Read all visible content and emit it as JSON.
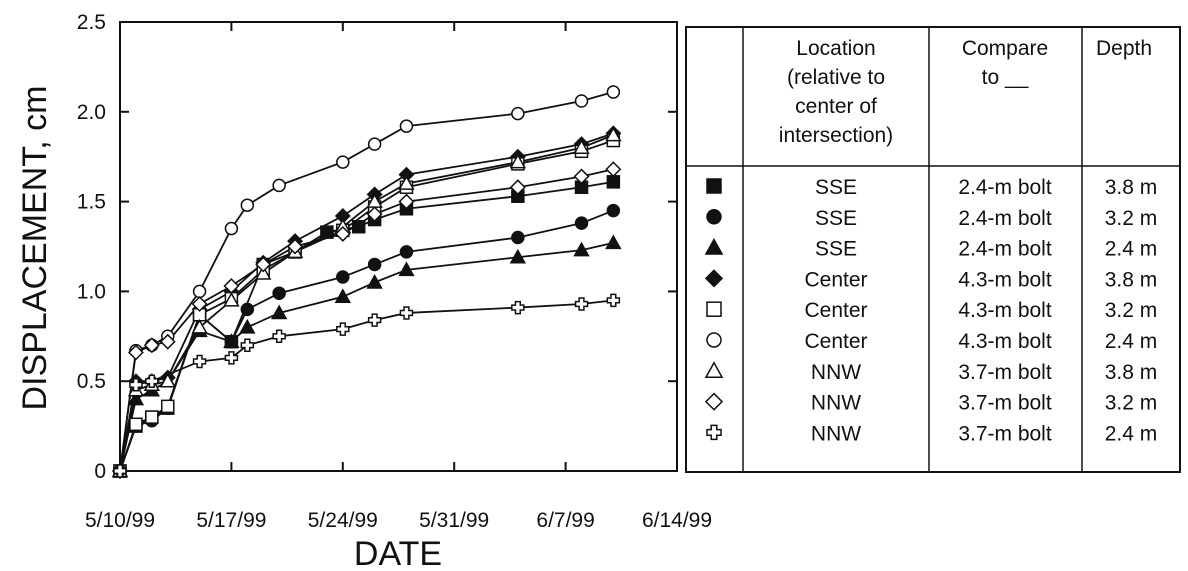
{
  "chart_data": {
    "type": "line",
    "xlabel": "DATE",
    "ylabel": "DISPLACEMENT, cm",
    "xlim": [
      "1999-05-10",
      "1999-06-14"
    ],
    "ylim": [
      0,
      2.5
    ],
    "x_tick_labels": [
      "5/10/99",
      "5/17/99",
      "5/24/99",
      "5/31/99",
      "6/7/99",
      "6/14/99"
    ],
    "y_tick_labels": [
      "0",
      "0.5",
      "1.0",
      "1.5",
      "2.0",
      "2.5"
    ],
    "series": [
      {
        "marker": "filled-square",
        "location": "SSE",
        "compare": "2.4-m bolt",
        "depth": "3.8 m",
        "x": [
          "1999-05-10",
          "1999-05-11",
          "1999-05-12",
          "1999-05-13",
          "1999-05-15",
          "1999-05-17",
          "1999-05-19",
          "1999-05-21",
          "1999-05-23",
          "1999-05-25",
          "1999-05-26",
          "1999-05-28",
          "1999-06-04",
          "1999-06-08",
          "1999-06-10"
        ],
        "values": [
          0.0,
          0.25,
          0.3,
          0.35,
          0.87,
          0.72,
          1.15,
          1.22,
          1.33,
          1.36,
          1.4,
          1.46,
          1.53,
          1.58,
          1.61
        ]
      },
      {
        "marker": "filled-circle",
        "location": "SSE",
        "compare": "2.4-m bolt",
        "depth": "3.2 m",
        "x": [
          "1999-05-10",
          "1999-05-11",
          "1999-05-12",
          "1999-05-13",
          "1999-05-15",
          "1999-05-17",
          "1999-05-18",
          "1999-05-20",
          "1999-05-24",
          "1999-05-26",
          "1999-05-28",
          "1999-06-04",
          "1999-06-08",
          "1999-06-10"
        ],
        "values": [
          0.0,
          0.25,
          0.28,
          0.35,
          0.87,
          0.72,
          0.9,
          0.99,
          1.08,
          1.15,
          1.22,
          1.3,
          1.38,
          1.45
        ]
      },
      {
        "marker": "filled-triangle",
        "location": "SSE",
        "compare": "2.4-m bolt",
        "depth": "2.4 m",
        "x": [
          "1999-05-10",
          "1999-05-11",
          "1999-05-12",
          "1999-05-13",
          "1999-05-15",
          "1999-05-17",
          "1999-05-18",
          "1999-05-20",
          "1999-05-24",
          "1999-05-26",
          "1999-05-28",
          "1999-06-04",
          "1999-06-08",
          "1999-06-10"
        ],
        "values": [
          0.0,
          0.4,
          0.45,
          0.5,
          0.78,
          0.72,
          0.8,
          0.88,
          0.97,
          1.05,
          1.12,
          1.19,
          1.23,
          1.27
        ]
      },
      {
        "marker": "filled-diamond",
        "location": "Center",
        "compare": "4.3-m bolt",
        "depth": "3.8 m",
        "x": [
          "1999-05-10",
          "1999-05-11",
          "1999-05-12",
          "1999-05-13",
          "1999-05-15",
          "1999-05-17",
          "1999-05-19",
          "1999-05-21",
          "1999-05-24",
          "1999-05-26",
          "1999-05-28",
          "1999-06-04",
          "1999-06-08",
          "1999-06-10"
        ],
        "values": [
          0.0,
          0.5,
          0.5,
          0.52,
          0.9,
          1.0,
          1.16,
          1.28,
          1.42,
          1.54,
          1.65,
          1.75,
          1.82,
          1.88
        ]
      },
      {
        "marker": "open-square",
        "location": "Center",
        "compare": "4.3-m bolt",
        "depth": "3.2 m",
        "x": [
          "1999-05-10",
          "1999-05-11",
          "1999-05-12",
          "1999-05-13",
          "1999-05-15",
          "1999-05-17",
          "1999-05-19",
          "1999-05-21",
          "1999-05-24",
          "1999-05-26",
          "1999-05-28",
          "1999-06-04",
          "1999-06-08",
          "1999-06-10"
        ],
        "values": [
          0.0,
          0.26,
          0.3,
          0.36,
          0.87,
          0.96,
          1.12,
          1.22,
          1.34,
          1.47,
          1.58,
          1.71,
          1.78,
          1.84
        ]
      },
      {
        "marker": "open-circle",
        "location": "Center",
        "compare": "4.3-m bolt",
        "depth": "2.4 m",
        "x": [
          "1999-05-10",
          "1999-05-11",
          "1999-05-12",
          "1999-05-13",
          "1999-05-15",
          "1999-05-17",
          "1999-05-18",
          "1999-05-20",
          "1999-05-24",
          "1999-05-26",
          "1999-05-28",
          "1999-06-04",
          "1999-06-08",
          "1999-06-10"
        ],
        "values": [
          0.0,
          0.67,
          0.7,
          0.75,
          1.0,
          1.35,
          1.48,
          1.59,
          1.72,
          1.82,
          1.92,
          1.99,
          2.06,
          2.11
        ]
      },
      {
        "marker": "open-triangle",
        "location": "NNW",
        "compare": "3.7-m bolt",
        "depth": "3.8 m",
        "x": [
          "1999-05-10",
          "1999-05-11",
          "1999-05-12",
          "1999-05-13",
          "1999-05-15",
          "1999-05-17",
          "1999-05-19",
          "1999-05-21",
          "1999-05-24",
          "1999-05-26",
          "1999-05-28",
          "1999-06-04",
          "1999-06-08",
          "1999-06-10"
        ],
        "values": [
          0.0,
          0.45,
          0.48,
          0.5,
          0.8,
          0.95,
          1.1,
          1.22,
          1.36,
          1.5,
          1.6,
          1.72,
          1.8,
          1.87
        ]
      },
      {
        "marker": "open-diamond",
        "location": "NNW",
        "compare": "3.7-m bolt",
        "depth": "3.2 m",
        "x": [
          "1999-05-10",
          "1999-05-11",
          "1999-05-12",
          "1999-05-13",
          "1999-05-15",
          "1999-05-17",
          "1999-05-19",
          "1999-05-21",
          "1999-05-24",
          "1999-05-26",
          "1999-05-28",
          "1999-06-04",
          "1999-06-08",
          "1999-06-10"
        ],
        "values": [
          0.0,
          0.66,
          0.7,
          0.72,
          0.93,
          1.03,
          1.15,
          1.25,
          1.32,
          1.43,
          1.5,
          1.58,
          1.64,
          1.68
        ]
      },
      {
        "marker": "open-cross",
        "location": "NNW",
        "compare": "3.7-m bolt",
        "depth": "2.4 m",
        "x": [
          "1999-05-10",
          "1999-05-11",
          "1999-05-12",
          "1999-05-15",
          "1999-05-17",
          "1999-05-18",
          "1999-05-20",
          "1999-05-24",
          "1999-05-26",
          "1999-05-28",
          "1999-06-04",
          "1999-06-08",
          "1999-06-10"
        ],
        "values": [
          0.0,
          0.48,
          0.5,
          0.61,
          0.63,
          0.7,
          0.75,
          0.79,
          0.84,
          0.88,
          0.91,
          0.93,
          0.95
        ]
      }
    ],
    "legend": {
      "placement": "right",
      "headers": [
        "Location (relative to center of intersection)",
        "Compare to __",
        "Depth"
      ],
      "header_lines": [
        [
          "Location",
          "(relative to",
          "center of",
          "intersection)"
        ],
        [
          "Compare",
          "to __"
        ],
        [
          "Depth"
        ]
      ]
    },
    "grid": false
  }
}
